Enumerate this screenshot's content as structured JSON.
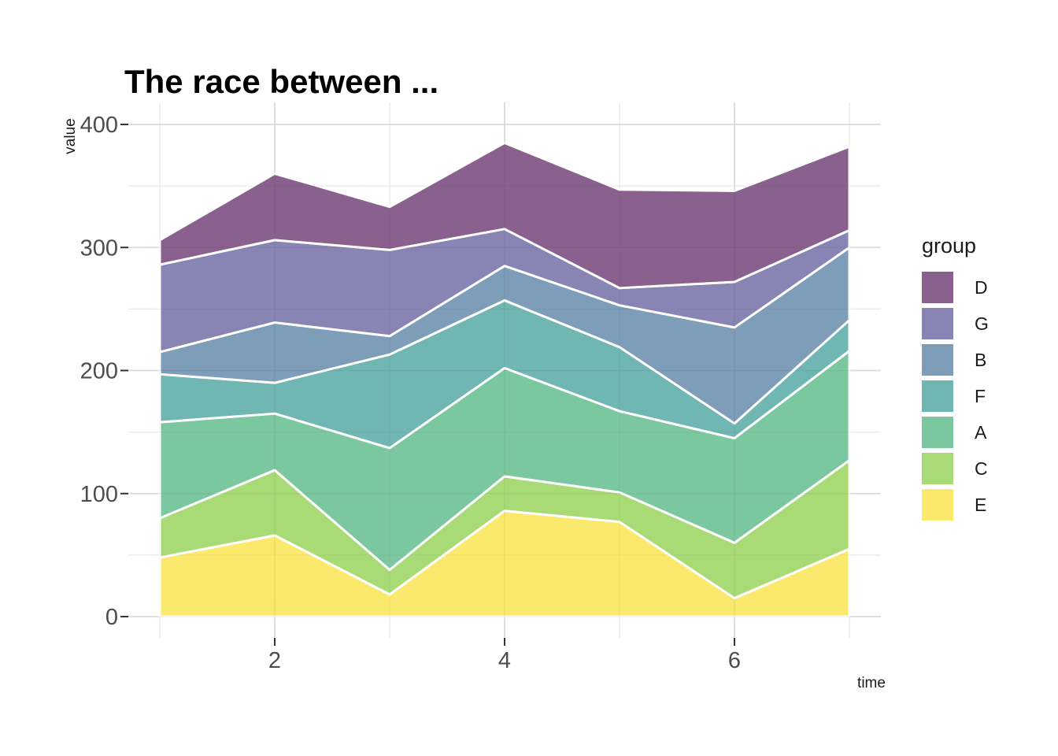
{
  "page": {
    "title": "The race between ..."
  },
  "legend": {
    "title": "group"
  },
  "axes": {
    "x_title": "time",
    "y_title": "value"
  },
  "chart_data": {
    "type": "area",
    "stacked": true,
    "title": "The race between ...",
    "xlabel": "time",
    "ylabel": "value",
    "x": [
      1,
      2,
      3,
      4,
      5,
      6,
      7
    ],
    "x_ticks": [
      2,
      4,
      6
    ],
    "y_ticks": [
      0,
      100,
      200,
      300,
      400
    ],
    "ylim": [
      0,
      400
    ],
    "grid": "major and minor gridlines, light gray on white",
    "legend_position": "right",
    "stack_order_bottom_to_top": [
      "E",
      "C",
      "A",
      "F",
      "B",
      "G",
      "D"
    ],
    "series": [
      {
        "name": "D",
        "color": "#89608E",
        "values": [
          20,
          54,
          35,
          70,
          80,
          74,
          68
        ]
      },
      {
        "name": "G",
        "color": "#8884B4",
        "values": [
          71,
          67,
          70,
          30,
          14,
          37,
          14
        ]
      },
      {
        "name": "B",
        "color": "#7D9DB9",
        "values": [
          18,
          49,
          15,
          28,
          34,
          78,
          59
        ]
      },
      {
        "name": "F",
        "color": "#70B6B2",
        "values": [
          39,
          25,
          76,
          55,
          52,
          12,
          25
        ]
      },
      {
        "name": "A",
        "color": "#7BC8A0",
        "values": [
          78,
          46,
          99,
          88,
          66,
          85,
          89
        ]
      },
      {
        "name": "C",
        "color": "#A8DB76",
        "values": [
          32,
          53,
          20,
          28,
          24,
          45,
          72
        ]
      },
      {
        "name": "E",
        "color": "#FBE96D",
        "values": [
          48,
          66,
          18,
          86,
          77,
          15,
          55
        ]
      }
    ],
    "stacked_totals": [
      306,
      360,
      333,
      385,
      347,
      346,
      382
    ],
    "colors": {
      "gridline_major": "#e9e9e9",
      "gridline_minor": "#f0f0f0",
      "tick_mark": "#333333",
      "tick_label": "#4d4d4d",
      "band_outline": "#ffffff"
    }
  }
}
